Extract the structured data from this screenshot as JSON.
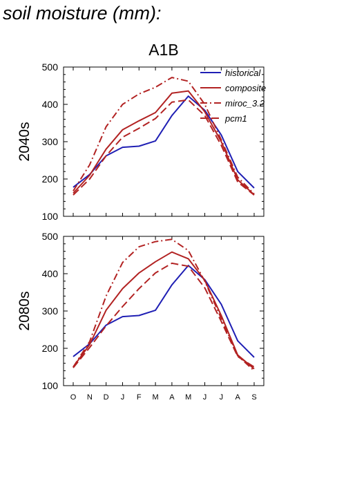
{
  "header": {
    "title": "soil moisture (mm):"
  },
  "chart_data": {
    "type": "line",
    "title": "A1B",
    "categories": [
      "O",
      "N",
      "D",
      "J",
      "F",
      "M",
      "A",
      "M",
      "J",
      "J",
      "A",
      "S"
    ],
    "ylim": [
      100,
      500
    ],
    "yticks": [
      "100",
      "200",
      "300",
      "400",
      "500"
    ],
    "legend": {
      "placement": "top-right",
      "entries": [
        "historical",
        "composite",
        "miroc_3.2",
        "pcm1"
      ]
    },
    "colors": {
      "historical": "#1f1fb4",
      "projected": "#b22222"
    },
    "panels": [
      {
        "label": "2040s",
        "series": [
          {
            "name": "historical",
            "dash": "solid",
            "values": [
              178,
              212,
              262,
              285,
              288,
              302,
              370,
              422,
              384,
              318,
              220,
              176
            ]
          },
          {
            "name": "composite",
            "dash": "solid",
            "values": [
              162,
              210,
              280,
              332,
              356,
              378,
              430,
              436,
              380,
              300,
              198,
              158
            ]
          },
          {
            "name": "miroc_3.2",
            "dash": "dashdot",
            "values": [
              168,
              238,
              340,
              400,
              428,
              446,
              472,
              462,
              400,
              305,
              205,
              160
            ]
          },
          {
            "name": "pcm1",
            "dash": "dash",
            "values": [
              157,
              200,
              262,
              312,
              336,
              362,
              406,
              412,
              370,
              290,
              192,
              157
            ]
          }
        ]
      },
      {
        "label": "2080s",
        "series": [
          {
            "name": "historical",
            "dash": "solid",
            "values": [
              178,
              212,
              262,
              285,
              288,
              302,
              370,
              422,
              384,
              318,
              220,
              176
            ]
          },
          {
            "name": "composite",
            "dash": "solid",
            "values": [
              150,
              210,
              302,
              360,
              402,
              432,
              458,
              440,
              382,
              288,
              182,
              145
            ]
          },
          {
            "name": "miroc_3.2",
            "dash": "dashdot",
            "values": [
              150,
              218,
              340,
              430,
              472,
              486,
              492,
              462,
              380,
              280,
              180,
              140
            ]
          },
          {
            "name": "pcm1",
            "dash": "dash",
            "values": [
              148,
              202,
              260,
              312,
              360,
              402,
              428,
              420,
              362,
              272,
              178,
              150
            ]
          }
        ]
      }
    ]
  }
}
